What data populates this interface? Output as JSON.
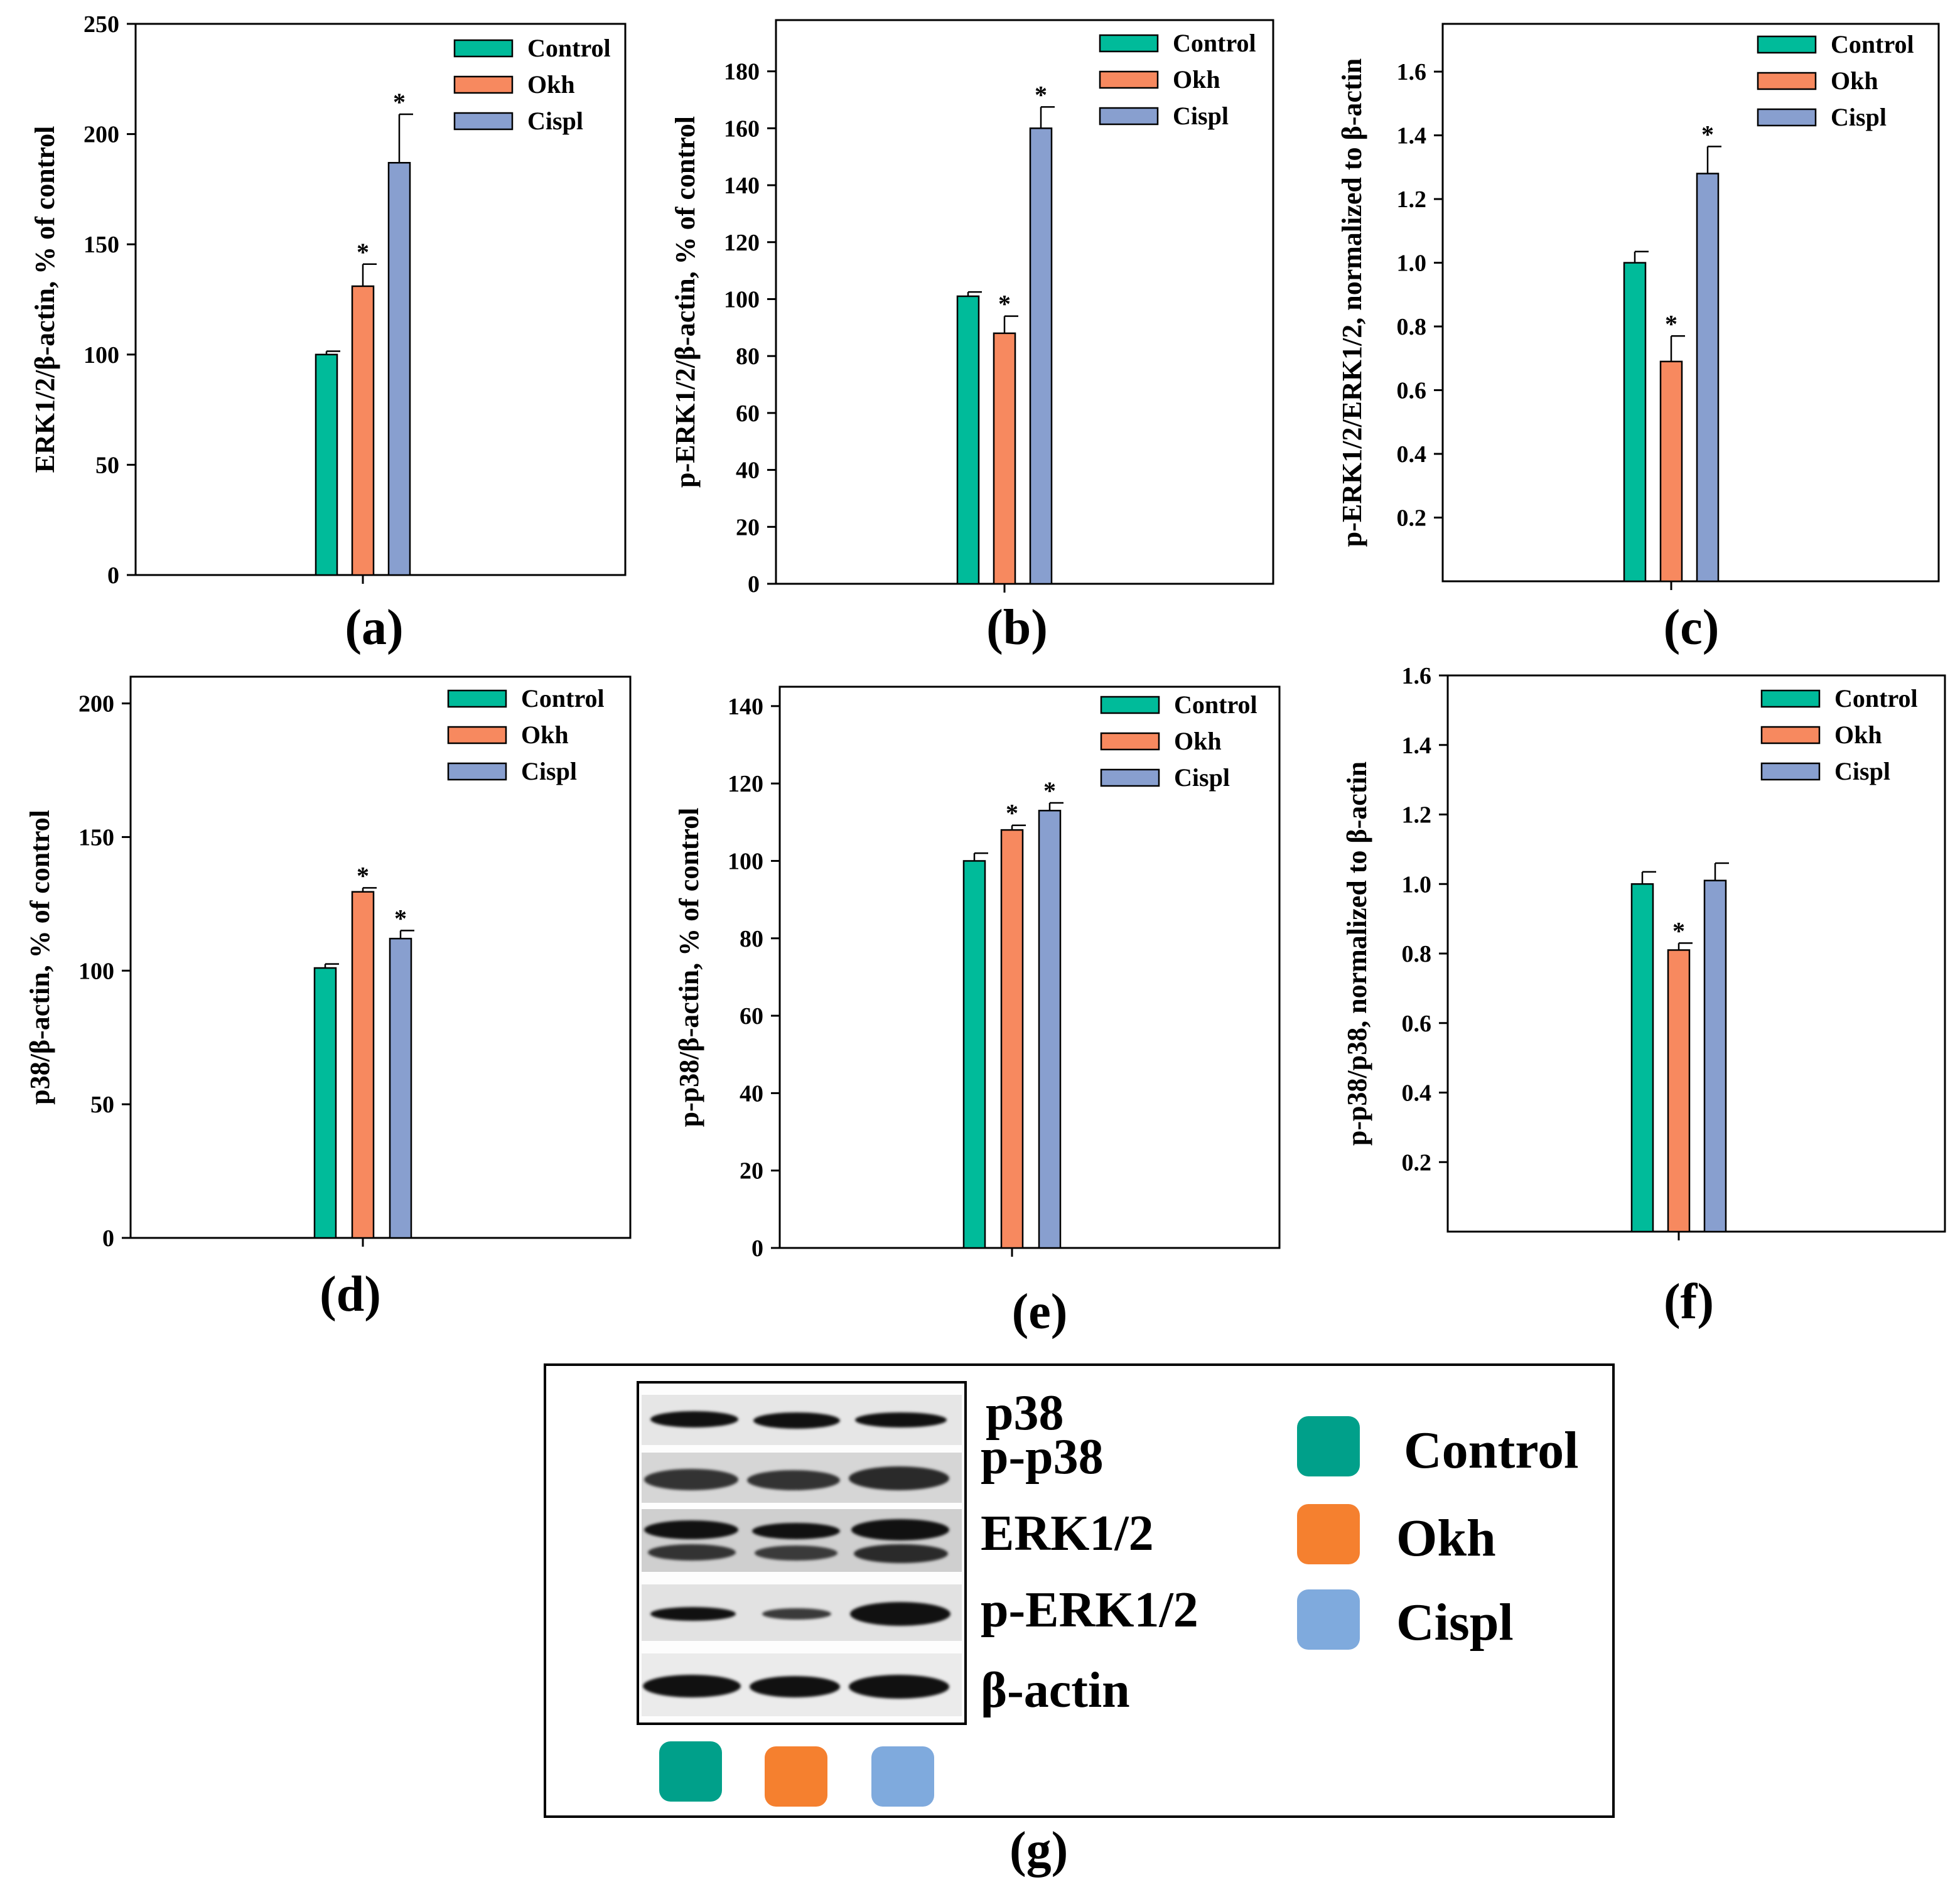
{
  "colors": {
    "Control": "#00bb9a",
    "Okh": "#f7895f",
    "Cispl": "#889fcf",
    "legend_Control": "#00a08a",
    "legend_Okh": "#f5802f",
    "legend_Cispl": "#7faadd"
  },
  "legend_labels": [
    "Control",
    "Okh",
    "Cispl"
  ],
  "chart_data": [
    {
      "type": "bar",
      "panel": "(a)",
      "ylabel": "ERK1/2/β-actin, % of control",
      "ylim": [
        0,
        250
      ],
      "yticks": [
        0,
        50,
        100,
        150,
        200,
        250
      ],
      "tick_decimals": 0,
      "series": [
        {
          "name": "Control",
          "value": 100,
          "error": 1.5,
          "sig": ""
        },
        {
          "name": "Okh",
          "value": 131,
          "error": 10,
          "sig": "*"
        },
        {
          "name": "Cispl",
          "value": 187,
          "error": 22,
          "sig": "*"
        }
      ]
    },
    {
      "type": "bar",
      "panel": "(b)",
      "ylabel": "p-ERK1/2/β-actin, % of control",
      "ylim": [
        0,
        198
      ],
      "yticks": [
        0,
        20,
        40,
        60,
        80,
        100,
        120,
        140,
        160,
        180
      ],
      "tick_decimals": 0,
      "series": [
        {
          "name": "Control",
          "value": 101,
          "error": 1.5,
          "sig": ""
        },
        {
          "name": "Okh",
          "value": 88,
          "error": 6,
          "sig": "*"
        },
        {
          "name": "Cispl",
          "value": 160,
          "error": 7.5,
          "sig": "*"
        }
      ]
    },
    {
      "type": "bar",
      "panel": "(c)",
      "ylabel": "p-ERK1/2/ERK1/2, normalized to β-actin",
      "ylim": [
        0,
        1.75
      ],
      "yticks": [
        0.2,
        0.4,
        0.6,
        0.8,
        1.0,
        1.2,
        1.4,
        1.6
      ],
      "tick_decimals": 1,
      "series": [
        {
          "name": "Control",
          "value": 1.0,
          "error": 0.035,
          "sig": ""
        },
        {
          "name": "Okh",
          "value": 0.69,
          "error": 0.08,
          "sig": "*"
        },
        {
          "name": "Cispl",
          "value": 1.28,
          "error": 0.085,
          "sig": "*"
        }
      ]
    },
    {
      "type": "bar",
      "panel": "(d)",
      "ylabel": "p38/β-actin, % of control",
      "ylim": [
        0,
        210
      ],
      "yticks": [
        0,
        50,
        100,
        150,
        200
      ],
      "tick_decimals": 0,
      "series": [
        {
          "name": "Control",
          "value": 101,
          "error": 1.5,
          "sig": ""
        },
        {
          "name": "Okh",
          "value": 129.5,
          "error": 1.5,
          "sig": "*"
        },
        {
          "name": "Cispl",
          "value": 112,
          "error": 3,
          "sig": "*"
        }
      ]
    },
    {
      "type": "bar",
      "panel": "(e)",
      "ylabel": "p-p38/β-actin, % of control",
      "ylim": [
        0,
        145
      ],
      "yticks": [
        0,
        20,
        40,
        60,
        80,
        100,
        120,
        140
      ],
      "tick_decimals": 0,
      "series": [
        {
          "name": "Control",
          "value": 100,
          "error": 2,
          "sig": ""
        },
        {
          "name": "Okh",
          "value": 108,
          "error": 1.2,
          "sig": "*"
        },
        {
          "name": "Cispl",
          "value": 113,
          "error": 2,
          "sig": "*"
        }
      ]
    },
    {
      "type": "bar",
      "panel": "(f)",
      "ylabel": "p-p38/p38, normalized to β-actin",
      "ylim": [
        0,
        1.6
      ],
      "yticks": [
        0.2,
        0.4,
        0.6,
        0.8,
        1.0,
        1.2,
        1.4,
        1.6
      ],
      "tick_decimals": 1,
      "series": [
        {
          "name": "Control",
          "value": 1.0,
          "error": 0.035,
          "sig": ""
        },
        {
          "name": "Okh",
          "value": 0.81,
          "error": 0.02,
          "sig": "*"
        },
        {
          "name": "Cispl",
          "value": 1.01,
          "error": 0.05,
          "sig": ""
        }
      ]
    }
  ],
  "blot": {
    "panel": "(g)",
    "rows": [
      "p38",
      "p-p38",
      "ERK1/2",
      "p-ERK1/2",
      "β-actin"
    ],
    "legend": [
      "Control",
      "Okh",
      "Cispl"
    ]
  }
}
